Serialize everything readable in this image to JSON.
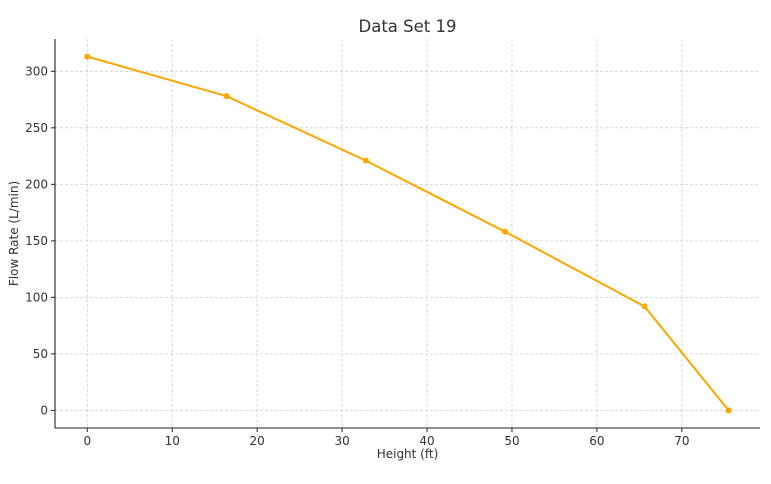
{
  "chart_data": {
    "type": "line",
    "title": "Data Set 19",
    "xlabel": "Height (ft)",
    "ylabel": "Flow Rate (L/min)",
    "xlim": [
      -3.8,
      79.2
    ],
    "ylim": [
      -15.6,
      328.6
    ],
    "xticks": [
      0,
      10,
      20,
      30,
      40,
      50,
      60,
      70
    ],
    "yticks": [
      0,
      50,
      100,
      150,
      200,
      250,
      300
    ],
    "grid": true,
    "series": [
      {
        "color": "#FFA500",
        "x": [
          0,
          16.4,
          32.8,
          49.2,
          65.6,
          75.5
        ],
        "y": [
          313,
          278,
          221,
          158,
          92,
          0
        ]
      }
    ]
  }
}
